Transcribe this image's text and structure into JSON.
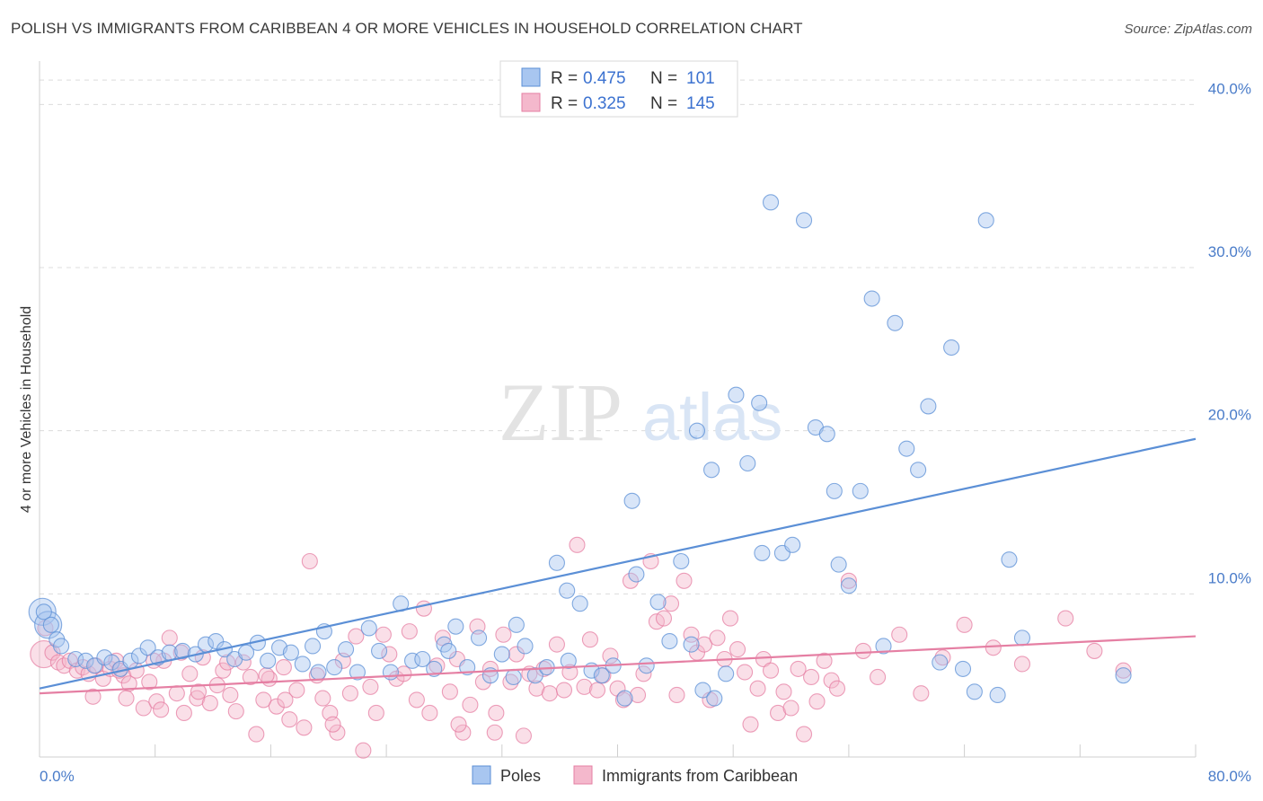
{
  "header": {
    "title": "POLISH VS IMMIGRANTS FROM CARIBBEAN 4 OR MORE VEHICLES IN HOUSEHOLD CORRELATION CHART",
    "source": "Source: ZipAtlas.com"
  },
  "watermark": {
    "zip": "ZIP",
    "atlas": "atlas"
  },
  "legend": {
    "r_label": "R =",
    "n_label": "N =",
    "rows": [
      {
        "r": "0.475",
        "n": "101",
        "color": "#5b8fd6"
      },
      {
        "r": "0.325",
        "n": "145",
        "color": "#e57fa3"
      }
    ]
  },
  "bottom_legend": {
    "poles": "Poles",
    "caribbean": "Immigrants from Caribbean"
  },
  "y_axis_label": "4 or more Vehicles in Household",
  "chart_data": {
    "type": "scatter",
    "xlim": [
      0,
      80
    ],
    "ylim": [
      0,
      42
    ],
    "x_ticks": [
      "0.0%",
      "80.0%"
    ],
    "y_ticks": [
      {
        "value": 10,
        "label": "10.0%"
      },
      {
        "value": 20,
        "label": "20.0%"
      },
      {
        "value": 30,
        "label": "30.0%"
      },
      {
        "value": 40,
        "label": "40.0%"
      }
    ],
    "grid": true,
    "series": [
      {
        "name": "Poles",
        "color": "#5b8fd6",
        "fill": "#a8c6f0",
        "trend": {
          "x": [
            0,
            80
          ],
          "y": [
            4.2,
            19.5
          ]
        },
        "points": [
          [
            0.3,
            8.9
          ],
          [
            0.8,
            8.1
          ],
          [
            1.2,
            7.2
          ],
          [
            1.5,
            6.8
          ],
          [
            2.5,
            6.0
          ],
          [
            3.2,
            5.9
          ],
          [
            3.8,
            5.6
          ],
          [
            4.5,
            6.1
          ],
          [
            5.0,
            5.8
          ],
          [
            5.6,
            5.4
          ],
          [
            6.3,
            5.9
          ],
          [
            6.9,
            6.2
          ],
          [
            7.5,
            6.7
          ],
          [
            8.2,
            6.1
          ],
          [
            9.0,
            6.4
          ],
          [
            9.9,
            6.5
          ],
          [
            10.8,
            6.3
          ],
          [
            11.5,
            6.9
          ],
          [
            12.2,
            7.1
          ],
          [
            12.8,
            6.6
          ],
          [
            13.5,
            6.0
          ],
          [
            14.3,
            6.4
          ],
          [
            15.1,
            7.0
          ],
          [
            15.8,
            5.9
          ],
          [
            16.6,
            6.7
          ],
          [
            17.4,
            6.4
          ],
          [
            18.2,
            5.7
          ],
          [
            18.9,
            6.8
          ],
          [
            19.7,
            7.7
          ],
          [
            20.4,
            5.5
          ],
          [
            21.2,
            6.6
          ],
          [
            22.0,
            5.2
          ],
          [
            22.8,
            7.9
          ],
          [
            23.5,
            6.5
          ],
          [
            24.3,
            5.2
          ],
          [
            25.0,
            9.4
          ],
          [
            25.8,
            5.9
          ],
          [
            26.5,
            6.0
          ],
          [
            27.3,
            5.4
          ],
          [
            28.0,
            6.9
          ],
          [
            28.8,
            8.0
          ],
          [
            29.6,
            5.5
          ],
          [
            30.4,
            7.3
          ],
          [
            31.2,
            5.0
          ],
          [
            32.0,
            6.3
          ],
          [
            32.8,
            4.9
          ],
          [
            33.6,
            6.8
          ],
          [
            34.3,
            5.0
          ],
          [
            35.1,
            5.5
          ],
          [
            35.8,
            11.9
          ],
          [
            36.6,
            5.9
          ],
          [
            37.4,
            9.4
          ],
          [
            38.2,
            5.3
          ],
          [
            38.9,
            5.0
          ],
          [
            39.7,
            5.6
          ],
          [
            40.5,
            3.6
          ],
          [
            41.3,
            11.2
          ],
          [
            42.0,
            5.6
          ],
          [
            42.8,
            9.5
          ],
          [
            43.6,
            7.1
          ],
          [
            44.4,
            12.0
          ],
          [
            45.1,
            6.9
          ],
          [
            45.9,
            4.1
          ],
          [
            46.7,
            3.6
          ],
          [
            47.5,
            5.1
          ],
          [
            48.2,
            22.2
          ],
          [
            49.0,
            18.0
          ],
          [
            49.8,
            21.7
          ],
          [
            50.6,
            34.0
          ],
          [
            51.4,
            12.5
          ],
          [
            52.1,
            13.0
          ],
          [
            52.9,
            32.9
          ],
          [
            53.7,
            20.2
          ],
          [
            54.5,
            19.8
          ],
          [
            55.3,
            11.8
          ],
          [
            56.0,
            10.5
          ],
          [
            56.8,
            16.3
          ],
          [
            57.6,
            28.1
          ],
          [
            58.4,
            6.8
          ],
          [
            59.2,
            26.6
          ],
          [
            60.0,
            18.9
          ],
          [
            60.8,
            17.6
          ],
          [
            61.5,
            21.5
          ],
          [
            62.3,
            5.8
          ],
          [
            63.1,
            25.1
          ],
          [
            63.9,
            5.4
          ],
          [
            64.7,
            4.0
          ],
          [
            65.5,
            32.9
          ],
          [
            66.3,
            3.8
          ],
          [
            67.1,
            12.1
          ],
          [
            68.0,
            7.3
          ],
          [
            75.0,
            5.0
          ],
          [
            41.0,
            15.7
          ],
          [
            45.5,
            20.0
          ],
          [
            50.0,
            12.5
          ],
          [
            46.5,
            17.6
          ],
          [
            55.0,
            16.3
          ],
          [
            36.5,
            10.2
          ],
          [
            33.0,
            8.1
          ],
          [
            28.3,
            6.5
          ],
          [
            19.3,
            5.2
          ]
        ],
        "big_points": [
          [
            0.2,
            8.9
          ],
          [
            0.6,
            8.1
          ]
        ]
      },
      {
        "name": "Immigrants from Caribbean",
        "color": "#e57fa3",
        "fill": "#f4b8cc",
        "trend": {
          "x": [
            0,
            80
          ],
          "y": [
            3.9,
            7.4
          ]
        },
        "points": [
          [
            0.4,
            7.9
          ],
          [
            0.9,
            6.4
          ],
          [
            1.3,
            5.8
          ],
          [
            1.7,
            5.6
          ],
          [
            2.1,
            5.9
          ],
          [
            2.6,
            5.3
          ],
          [
            3.0,
            5.5
          ],
          [
            3.4,
            5.1
          ],
          [
            3.9,
            5.6
          ],
          [
            4.4,
            4.8
          ],
          [
            4.9,
            5.4
          ],
          [
            5.3,
            5.9
          ],
          [
            5.8,
            5.0
          ],
          [
            6.2,
            4.5
          ],
          [
            6.7,
            5.3
          ],
          [
            7.2,
            3.0
          ],
          [
            7.6,
            4.6
          ],
          [
            8.1,
            3.4
          ],
          [
            8.6,
            5.9
          ],
          [
            9.0,
            7.3
          ],
          [
            9.5,
            3.9
          ],
          [
            10.0,
            2.7
          ],
          [
            10.4,
            5.1
          ],
          [
            10.9,
            3.6
          ],
          [
            11.3,
            6.1
          ],
          [
            11.8,
            3.3
          ],
          [
            12.3,
            4.4
          ],
          [
            12.7,
            5.3
          ],
          [
            13.2,
            3.8
          ],
          [
            13.6,
            2.8
          ],
          [
            14.1,
            5.8
          ],
          [
            14.6,
            4.9
          ],
          [
            15.0,
            1.4
          ],
          [
            15.5,
            3.5
          ],
          [
            15.9,
            4.8
          ],
          [
            16.4,
            3.1
          ],
          [
            16.9,
            5.5
          ],
          [
            17.3,
            2.3
          ],
          [
            17.8,
            4.1
          ],
          [
            18.3,
            1.8
          ],
          [
            18.7,
            12.0
          ],
          [
            19.2,
            5.0
          ],
          [
            19.6,
            3.6
          ],
          [
            20.1,
            2.7
          ],
          [
            20.6,
            1.5
          ],
          [
            21.0,
            5.9
          ],
          [
            21.5,
            3.9
          ],
          [
            21.9,
            7.4
          ],
          [
            22.4,
            0.4
          ],
          [
            22.9,
            4.3
          ],
          [
            23.3,
            2.7
          ],
          [
            23.8,
            7.5
          ],
          [
            24.2,
            6.3
          ],
          [
            24.7,
            4.8
          ],
          [
            25.2,
            5.1
          ],
          [
            25.6,
            7.7
          ],
          [
            26.1,
            3.5
          ],
          [
            26.6,
            9.1
          ],
          [
            27.0,
            2.7
          ],
          [
            27.5,
            5.6
          ],
          [
            27.9,
            7.3
          ],
          [
            28.4,
            4.0
          ],
          [
            28.9,
            6.0
          ],
          [
            29.3,
            1.5
          ],
          [
            29.8,
            3.2
          ],
          [
            30.3,
            8.0
          ],
          [
            30.7,
            4.6
          ],
          [
            31.2,
            5.4
          ],
          [
            31.6,
            2.7
          ],
          [
            32.1,
            7.5
          ],
          [
            32.6,
            4.6
          ],
          [
            33.0,
            6.3
          ],
          [
            33.5,
            1.3
          ],
          [
            33.9,
            5.1
          ],
          [
            34.4,
            4.2
          ],
          [
            34.9,
            5.4
          ],
          [
            35.3,
            3.9
          ],
          [
            35.8,
            6.9
          ],
          [
            36.3,
            4.1
          ],
          [
            36.7,
            5.2
          ],
          [
            37.2,
            13.0
          ],
          [
            37.7,
            4.3
          ],
          [
            38.1,
            7.2
          ],
          [
            38.6,
            4.1
          ],
          [
            39.0,
            5.0
          ],
          [
            39.5,
            6.2
          ],
          [
            40.0,
            4.2
          ],
          [
            40.4,
            3.5
          ],
          [
            40.9,
            10.8
          ],
          [
            41.4,
            3.8
          ],
          [
            41.8,
            5.1
          ],
          [
            42.3,
            12.0
          ],
          [
            42.7,
            8.3
          ],
          [
            43.2,
            8.5
          ],
          [
            43.7,
            9.4
          ],
          [
            44.1,
            3.8
          ],
          [
            44.6,
            10.8
          ],
          [
            45.1,
            7.5
          ],
          [
            45.5,
            6.4
          ],
          [
            46.0,
            6.9
          ],
          [
            46.4,
            3.5
          ],
          [
            46.9,
            7.3
          ],
          [
            47.4,
            6.0
          ],
          [
            47.8,
            8.5
          ],
          [
            48.3,
            6.6
          ],
          [
            48.8,
            5.2
          ],
          [
            49.2,
            2.0
          ],
          [
            49.7,
            4.2
          ],
          [
            50.1,
            6.0
          ],
          [
            50.6,
            5.3
          ],
          [
            51.1,
            2.7
          ],
          [
            51.5,
            4.0
          ],
          [
            52.0,
            3.0
          ],
          [
            52.5,
            5.4
          ],
          [
            52.9,
            1.4
          ],
          [
            53.4,
            4.9
          ],
          [
            53.8,
            3.4
          ],
          [
            54.3,
            5.9
          ],
          [
            54.8,
            4.7
          ],
          [
            55.2,
            4.2
          ],
          [
            56.0,
            10.8
          ],
          [
            57.0,
            6.5
          ],
          [
            58.0,
            4.9
          ],
          [
            59.5,
            7.5
          ],
          [
            61.0,
            3.9
          ],
          [
            62.5,
            6.1
          ],
          [
            64.0,
            8.1
          ],
          [
            66.0,
            6.7
          ],
          [
            68.0,
            5.7
          ],
          [
            71.0,
            8.5
          ],
          [
            73.0,
            6.5
          ],
          [
            75.0,
            5.3
          ],
          [
            29.0,
            2.0
          ],
          [
            31.5,
            1.5
          ],
          [
            17.0,
            3.5
          ],
          [
            13.0,
            5.8
          ],
          [
            9.8,
            6.4
          ],
          [
            8.4,
            2.9
          ],
          [
            6.0,
            3.6
          ],
          [
            3.7,
            3.7
          ],
          [
            5.5,
            5.3
          ],
          [
            7.9,
            5.9
          ],
          [
            11.0,
            4.0
          ],
          [
            15.7,
            5.0
          ],
          [
            20.3,
            2.0
          ]
        ],
        "big_points": [
          [
            0.3,
            6.3
          ]
        ]
      }
    ]
  }
}
